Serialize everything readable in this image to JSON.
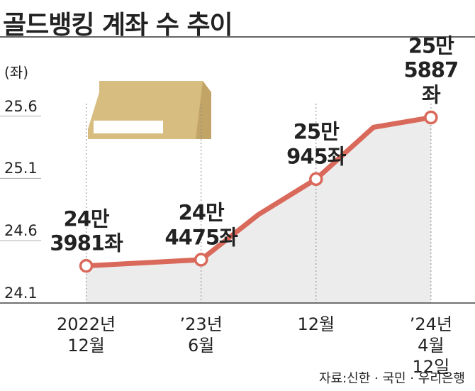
{
  "chart_data": {
    "type": "line",
    "title": "골드뱅킹 계좌 수 추이",
    "y_unit": "(좌)",
    "source": "자료:신한 · 국민 · 우리은행",
    "x": [
      0,
      6,
      9,
      12,
      15,
      18
    ],
    "xlim": [
      -4.5,
      20.3
    ],
    "xticks": [
      {
        "value": 0,
        "label": "2022년\n12월"
      },
      {
        "value": 6,
        "label": "’23년\n6월"
      },
      {
        "value": 12,
        "label": "12월"
      },
      {
        "value": 18,
        "label": "’24년\n4월 12일"
      }
    ],
    "ylim": [
      24.1,
      25.7
    ],
    "yticks": [
      24.1,
      24.6,
      25.1,
      25.6
    ],
    "series": [
      {
        "name": "골드뱅킹 계좌 수",
        "color": "#d9695a",
        "area_color": "#ececec",
        "values": [
          24.3981,
          24.4475,
          24.81,
          25.0945,
          25.51,
          25.5887
        ],
        "value_labels": [
          "24만\n3981좌",
          "24만\n4475좌",
          null,
          "25만\n945좌",
          null,
          "25만\n5887좌"
        ]
      }
    ]
  }
}
